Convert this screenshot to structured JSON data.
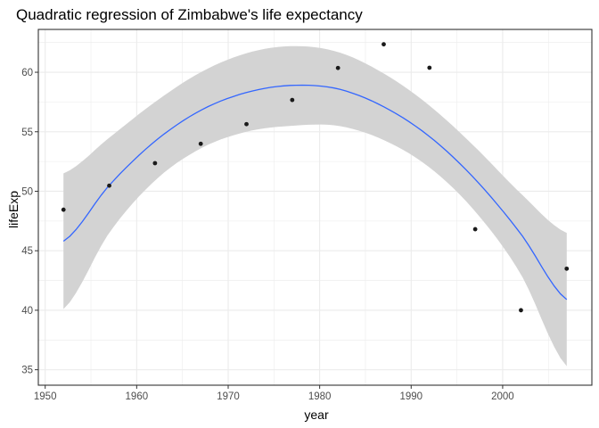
{
  "chart_data": {
    "type": "scatter",
    "title": "Quadratic regression of Zimbabwe's life expectancy",
    "xlabel": "year",
    "ylabel": "lifeExp",
    "xlim": [
      1949.25,
      2009.75
    ],
    "ylim": [
      33.7,
      63.6
    ],
    "x_ticks": [
      1950,
      1960,
      1970,
      1980,
      1990,
      2000
    ],
    "y_ticks": [
      35,
      40,
      45,
      50,
      55,
      60
    ],
    "grid": true,
    "theme": "bw",
    "points": {
      "x": [
        1952,
        1957,
        1962,
        1967,
        1972,
        1977,
        1982,
        1987,
        1992,
        1997,
        2002,
        2007
      ],
      "y": [
        48.45,
        50.47,
        52.36,
        53.99,
        55.64,
        57.67,
        60.36,
        62.35,
        60.38,
        46.81,
        40.0,
        43.49
      ]
    },
    "fit": {
      "method": "quadratic regression",
      "x": [
        1952,
        1957,
        1962,
        1967,
        1972,
        1977,
        1982,
        1987,
        1992,
        1997,
        2002,
        2007
      ],
      "y": [
        45.8,
        50.5,
        54.2,
        56.8,
        58.3,
        58.9,
        58.6,
        57.1,
        54.6,
        51.0,
        46.4,
        40.9
      ],
      "lower": [
        40.1,
        46.5,
        50.9,
        53.6,
        55.0,
        55.5,
        55.5,
        54.3,
        52.0,
        48.3,
        43.0,
        35.3
      ],
      "upper": [
        51.5,
        54.5,
        57.5,
        60.0,
        61.6,
        62.2,
        61.7,
        59.9,
        57.2,
        53.7,
        49.8,
        46.5
      ]
    },
    "colors": {
      "points": "#1a1a1a",
      "fit_line": "#3366ff",
      "ribbon": "#d3d3d3",
      "grid": "#ebebeb",
      "panel_border": "#333333"
    }
  }
}
